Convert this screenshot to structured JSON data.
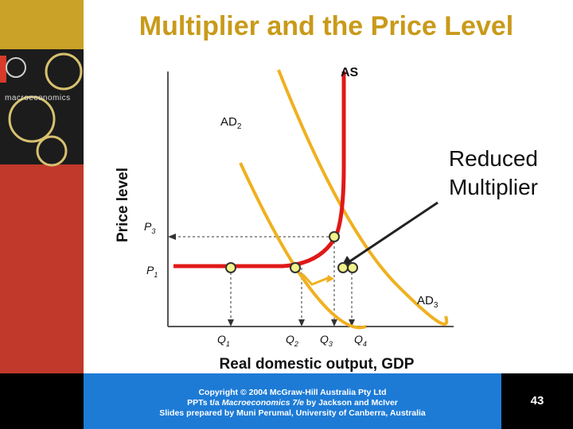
{
  "slide": {
    "title": "Multiplier and the Price Level",
    "sidebar": {
      "book_title": "macroeconomics",
      "colors": {
        "gold": "#c9a227",
        "red": "#c0392b",
        "dark": "#1c1c1c"
      }
    },
    "footer": {
      "line1": "Copyright © 2004 McGraw-Hill Australia Pty Ltd",
      "line2_prefix": "PPTs t/a ",
      "line2_italic": "Macroeconomics 7/e",
      "line2_suffix": " by Jackson and McIver",
      "line3": "Slides prepared by Muni Perumal, University of Canberra, Australia",
      "page_number": "43"
    }
  },
  "diagram": {
    "y_axis_label": "Price level",
    "x_axis_label": "Real domestic output, GDP",
    "curves": {
      "as": "AS",
      "ad2": "AD",
      "ad2_sub": "2",
      "ad3": "AD",
      "ad3_sub": "3"
    },
    "price_levels": [
      {
        "label": "P",
        "sub": "3"
      },
      {
        "label": "P",
        "sub": "1"
      }
    ],
    "quantities": [
      {
        "label": "Q",
        "sub": "1"
      },
      {
        "label": "Q",
        "sub": "2"
      },
      {
        "label": "Q",
        "sub": "3"
      },
      {
        "label": "Q",
        "sub": "4"
      }
    ],
    "annotation": {
      "line1": "Reduced",
      "line2": "Multiplier"
    },
    "colors": {
      "as_curve": "#e01818",
      "ad_curves": "#f0b020",
      "points": "#f2f28a",
      "title": "#c99a1a",
      "footer_blue": "#1d7bd6"
    }
  }
}
